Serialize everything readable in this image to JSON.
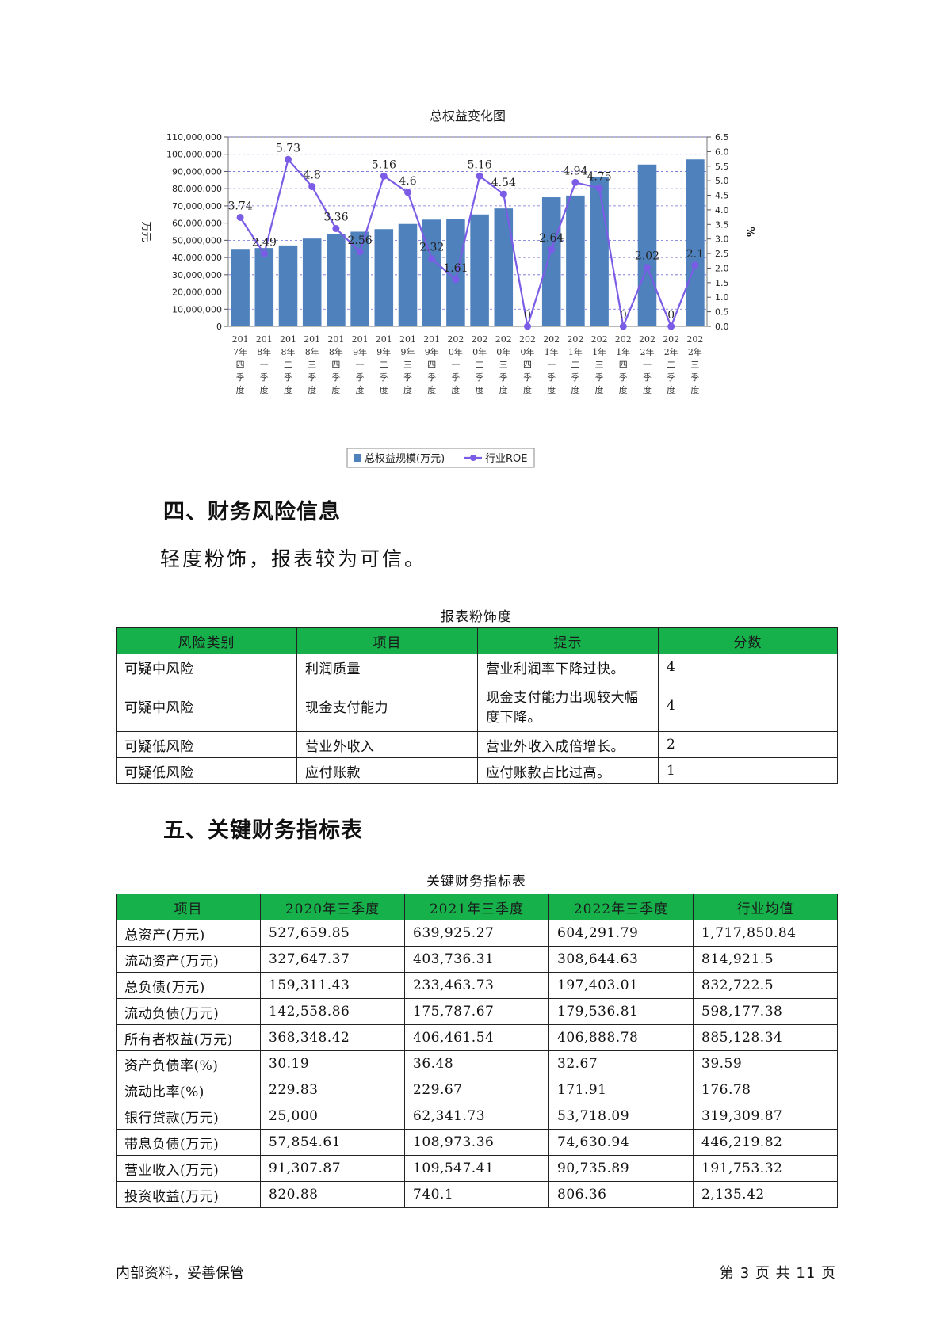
{
  "chart_data": {
    "type": "bar",
    "title": "总权益变化图",
    "ylabel": "万元",
    "y2label": "%",
    "ylim": [
      0,
      110000000
    ],
    "y2lim": [
      0,
      6.5
    ],
    "y_ticks": [
      "0",
      "10,000,000",
      "20,000,000",
      "30,000,000",
      "40,000,000",
      "50,000,000",
      "60,000,000",
      "70,000,000",
      "80,000,000",
      "90,000,000",
      "100,000,000",
      "110,000,000"
    ],
    "y2_ticks": [
      "0.0",
      "0.5",
      "1.0",
      "1.5",
      "2.0",
      "2.5",
      "3.0",
      "3.5",
      "4.0",
      "4.5",
      "5.0",
      "5.5",
      "6.0",
      "6.5"
    ],
    "categories": [
      "2017年四季度",
      "2018年一季度",
      "2018年二季度",
      "2018年三季度",
      "2018年四季度",
      "2019年一季度",
      "2019年二季度",
      "2019年三季度",
      "2019年四季度",
      "2020年一季度",
      "2020年二季度",
      "2020年三季度",
      "2020年四季度",
      "2021年一季度",
      "2021年二季度",
      "2021年三季度",
      "2021年四季度",
      "2022年一季度",
      "2022年二季度",
      "2022年三季度"
    ],
    "series": [
      {
        "name": "总权益规模(万元)",
        "type": "bar",
        "color": "#4f81bd",
        "values": [
          45000000,
          45500000,
          47000000,
          51000000,
          53500000,
          55000000,
          56500000,
          59500000,
          62000000,
          62500000,
          65000000,
          68500000,
          null,
          75000000,
          76000000,
          87000000,
          null,
          94000000,
          null,
          97000000
        ]
      },
      {
        "name": "行业ROE",
        "type": "line",
        "color": "#7b5ce6",
        "values": [
          3.74,
          2.49,
          5.73,
          4.8,
          3.36,
          2.56,
          5.16,
          4.6,
          2.32,
          1.61,
          5.16,
          4.54,
          0,
          2.64,
          4.94,
          4.75,
          0,
          2.02,
          0,
          2.1
        ],
        "labels": [
          "3.74",
          "2.49",
          "5.73",
          "4.8",
          "3.36",
          "2.56",
          "5.16",
          "4.6",
          "2.32",
          "1.61",
          "5.16",
          "4.54",
          "0",
          "2.64",
          "4.94",
          "4.75",
          "0",
          "2.02",
          "0",
          "2.1"
        ]
      }
    ],
    "legend_position": "bottom",
    "grid": true
  },
  "section4": {
    "heading": "四、财务风险信息",
    "intro": "轻度粉饰，报表较为可信。",
    "table_caption": "报表粉饰度",
    "headers": [
      "风险类别",
      "项目",
      "提示",
      "分数"
    ],
    "rows": [
      [
        "可疑中风险",
        "利润质量",
        "营业利润率下降过快。",
        "4"
      ],
      [
        "可疑中风险",
        "现金支付能力",
        "现金支付能力出现较大幅度下降。",
        "4"
      ],
      [
        "可疑低风险",
        "营业外收入",
        "营业外收入成倍增长。",
        "2"
      ],
      [
        "可疑低风险",
        "应付账款",
        "应付账款占比过高。",
        "1"
      ]
    ]
  },
  "section5": {
    "heading": "五、关键财务指标表",
    "table_caption": "关键财务指标表",
    "headers": [
      "项目",
      "2020年三季度",
      "2021年三季度",
      "2022年三季度",
      "行业均值"
    ],
    "rows": [
      [
        "总资产(万元)",
        "527,659.85",
        "639,925.27",
        "604,291.79",
        "1,717,850.84"
      ],
      [
        "流动资产(万元)",
        "327,647.37",
        "403,736.31",
        "308,644.63",
        "814,921.5"
      ],
      [
        "总负债(万元)",
        "159,311.43",
        "233,463.73",
        "197,403.01",
        "832,722.5"
      ],
      [
        "流动负债(万元)",
        "142,558.86",
        "175,787.67",
        "179,536.81",
        "598,177.38"
      ],
      [
        "所有者权益(万元)",
        "368,348.42",
        "406,461.54",
        "406,888.78",
        "885,128.34"
      ],
      [
        "资产负债率(%)",
        "30.19",
        "36.48",
        "32.67",
        "39.59"
      ],
      [
        "流动比率(%)",
        "229.83",
        "229.67",
        "171.91",
        "176.78"
      ],
      [
        "银行贷款(万元)",
        "25,000",
        "62,341.73",
        "53,718.09",
        "319,309.87"
      ],
      [
        "带息负债(万元)",
        "57,854.61",
        "108,973.36",
        "74,630.94",
        "446,219.82"
      ],
      [
        "营业收入(万元)",
        "91,307.87",
        "109,547.41",
        "90,735.89",
        "191,753.32"
      ],
      [
        "投资收益(万元)",
        "820.88",
        "740.1",
        "806.36",
        "2,135.42"
      ]
    ]
  },
  "footer": {
    "left": "内部资料，妥善保管",
    "right": "第 3 页  共 11 页"
  }
}
